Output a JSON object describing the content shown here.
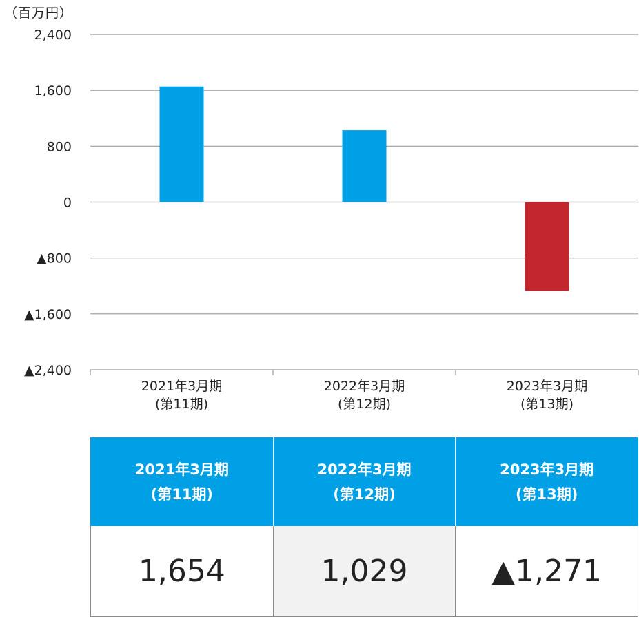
{
  "unit_label": "（百万円）",
  "chart_data": {
    "type": "bar",
    "categories": [
      "2021年3月期\n(第11期)",
      "2022年3月期\n(第12期)",
      "2023年3月期\n(第13期)"
    ],
    "values": [
      1654,
      1029,
      -1271
    ],
    "ylim": [
      -2400,
      2400
    ],
    "yticks": [
      2400,
      1600,
      800,
      0,
      -800,
      -1600,
      -2400
    ],
    "ytick_labels": [
      "2,400",
      "1,600",
      "800",
      "0",
      "▲800",
      "▲1,600",
      "▲2,400"
    ],
    "grid": true,
    "colors": {
      "positive": "#00a0e6",
      "negative": "#c4262e"
    }
  },
  "table": {
    "headers": [
      "2021年3月期\n(第11期)",
      "2022年3月期\n(第12期)",
      "2023年3月期\n(第13期)"
    ],
    "values": [
      "1,654",
      "1,029",
      "▲1,271"
    ],
    "header_color": "#00a0e6"
  }
}
